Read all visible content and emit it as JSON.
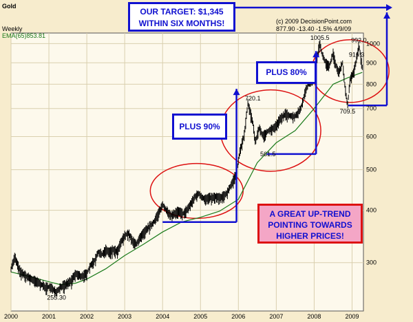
{
  "colors": {
    "frame_bg": "#f7eccd",
    "plot_bg": "#fdf9ec",
    "grid": "#d9cfae",
    "price": "#000000",
    "ema": "#1a7a1a",
    "annot_blue": "#1010d0",
    "circle": "#dd1111",
    "callout_bg": "#f4a6c6",
    "callout_border": "#dd1111"
  },
  "header": {
    "title": "Gold",
    "period": "Weekly",
    "ema_label": "EMA(65)853.81",
    "copyright": "(c) 2009 DecisionPoint.com",
    "stats": "877.90  -13.40  -1.5%  4/9/09"
  },
  "annotations": {
    "target_line1": "OUR TARGET: $1,345",
    "target_line2": "WITHIN SIX MONTHS!",
    "plus90": "PLUS 90%",
    "plus80": "PLUS 80%",
    "trend_line1": "A GREAT UP-TREND",
    "trend_line2": "POINTING TOWARDS",
    "trend_line3": "HIGHER PRICES!"
  },
  "chart_data": {
    "type": "line",
    "title": "Gold",
    "subtitle": "Weekly",
    "y_scale": "log",
    "ylim": [
      230,
      1060
    ],
    "xlim": [
      2000.0,
      2009.3
    ],
    "x_ticks": [
      "2000",
      "2001",
      "2002",
      "2003",
      "2004",
      "2005",
      "2006",
      "2007",
      "2008",
      "2009"
    ],
    "y_ticks": [
      300,
      400,
      500,
      600,
      700,
      800,
      900,
      1000
    ],
    "grid": true,
    "series": [
      {
        "name": "Gold",
        "style": "weekly bars",
        "x": [
          2000.0,
          2000.1,
          2000.15,
          2000.25,
          2000.4,
          2000.6,
          2000.75,
          2000.9,
          2001.0,
          2001.1,
          2001.2,
          2001.3,
          2001.45,
          2001.6,
          2001.7,
          2001.85,
          2002.0,
          2002.1,
          2002.2,
          2002.3,
          2002.4,
          2002.5,
          2002.6,
          2002.7,
          2002.8,
          2002.9,
          2003.0,
          2003.1,
          2003.2,
          2003.3,
          2003.45,
          2003.6,
          2003.75,
          2003.9,
          2004.0,
          2004.1,
          2004.2,
          2004.3,
          2004.4,
          2004.55,
          2004.7,
          2004.85,
          2004.95,
          2005.1,
          2005.25,
          2005.4,
          2005.55,
          2005.7,
          2005.85,
          2005.95,
          2006.05,
          2006.15,
          2006.25,
          2006.38,
          2006.45,
          2006.55,
          2006.65,
          2006.8,
          2006.95,
          2007.1,
          2007.25,
          2007.4,
          2007.5,
          2007.6,
          2007.65,
          2007.75,
          2007.85,
          2007.95,
          2008.05,
          2008.15,
          2008.2,
          2008.3,
          2008.4,
          2008.5,
          2008.55,
          2008.65,
          2008.75,
          2008.82,
          2008.88,
          2008.95,
          2009.05,
          2009.12,
          2009.18,
          2009.27
        ],
        "values": [
          290,
          310,
          300,
          285,
          278,
          272,
          268,
          262,
          262,
          260,
          255.3,
          262,
          266,
          272,
          282,
          278,
          282,
          296,
          302,
          318,
          313,
          322,
          318,
          322,
          318,
          335,
          348,
          352,
          338,
          332,
          348,
          362,
          372,
          395,
          412,
          400,
          388,
          392,
          398,
          392,
          408,
          430,
          438,
          425,
          428,
          430,
          428,
          440,
          468,
          490,
          560,
          600,
          720.1,
          650,
          580,
          630,
          600,
          620,
          630,
          660,
          680,
          670,
          670,
          690,
          700,
          760,
          800,
          820,
          900,
          1005.5,
          950,
          900,
          880,
          950,
          900,
          850,
          900,
          780,
          709.5,
          820,
          860,
          916.3,
          992.0,
          877.9
        ]
      },
      {
        "name": "EMA(65)853.81",
        "x": [
          2000.0,
          2000.5,
          2001.0,
          2001.3,
          2001.7,
          2002.0,
          2002.5,
          2003.0,
          2003.5,
          2004.0,
          2004.5,
          2005.0,
          2005.5,
          2006.0,
          2006.5,
          2007.0,
          2007.5,
          2008.0,
          2008.5,
          2008.9,
          2009.27
        ],
        "values": [
          285,
          278,
          270,
          266,
          268,
          274,
          290,
          312,
          332,
          355,
          375,
          385,
          398,
          425,
          520,
          580,
          620,
          700,
          800,
          830,
          853.81
        ]
      }
    ],
    "point_labels": [
      {
        "x": 2001.2,
        "y": 255.3,
        "text": "255.30"
      },
      {
        "x": 2006.38,
        "y": 720.1,
        "text": "720.1"
      },
      {
        "x": 2006.78,
        "y": 561.5,
        "text": "561.5"
      },
      {
        "x": 2008.15,
        "y": 1005.5,
        "text": "1005.5"
      },
      {
        "x": 2008.88,
        "y": 709.5,
        "text": "709.5"
      },
      {
        "x": 2009.12,
        "y": 916.3,
        "text": "916.3"
      },
      {
        "x": 2009.18,
        "y": 992.0,
        "text": "992.0"
      }
    ]
  }
}
